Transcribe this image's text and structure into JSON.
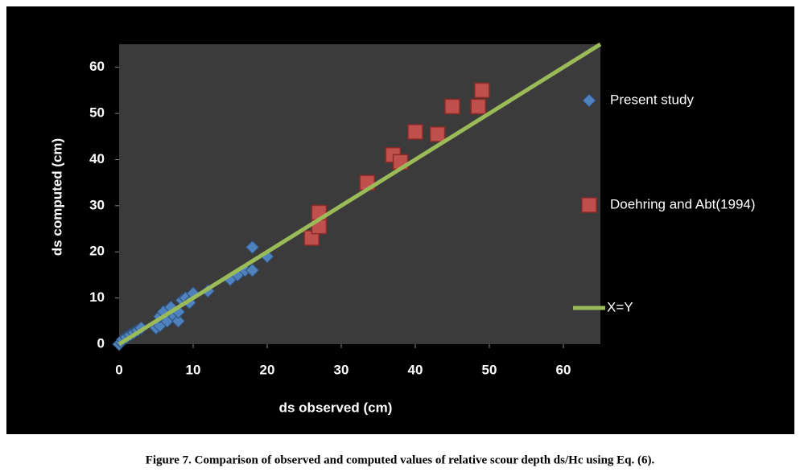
{
  "chart_data": {
    "type": "scatter",
    "xlabel": "ds observed (cm)",
    "ylabel": "ds computed (cm)",
    "caption": "Figure 7. Comparison of observed and computed values of relative scour depth ds/Hc using Eq. (6).",
    "xlim": [
      0,
      65
    ],
    "ylim": [
      0,
      65
    ],
    "xticks": [
      0,
      10,
      20,
      30,
      40,
      50,
      60
    ],
    "yticks": [
      0,
      10,
      20,
      30,
      40,
      50,
      60
    ],
    "series": [
      {
        "name": "Present study",
        "color": "#4f81bd",
        "marker": "diamond",
        "x": [
          0,
          0.3,
          0.5,
          1,
          1.5,
          2,
          2.5,
          3,
          5,
          5.5,
          5.5,
          6,
          6.5,
          7,
          7.5,
          8,
          8,
          8.5,
          9,
          9.5,
          10,
          12,
          15,
          16,
          17,
          18,
          18,
          20
        ],
        "values": [
          0,
          0.5,
          1,
          1.5,
          2,
          2.5,
          3,
          3.5,
          3.5,
          4,
          6,
          7,
          5,
          8,
          6,
          5,
          7,
          9.5,
          10,
          9,
          11,
          11.5,
          14,
          15,
          16,
          16,
          21,
          19
        ]
      },
      {
        "name": "Doehring and Abt(1994)",
        "color": "#c0504d",
        "marker": "square",
        "x": [
          26,
          27,
          27,
          33.5,
          37,
          38,
          40,
          43,
          45,
          48.5,
          49
        ],
        "values": [
          23,
          25.5,
          28.5,
          35,
          41,
          39.5,
          46,
          45.5,
          51.5,
          51.5,
          55
        ]
      },
      {
        "name": "X=Y",
        "color": "#9bbb59",
        "marker": "line",
        "x": [
          0,
          65
        ],
        "values": [
          0,
          65
        ]
      }
    ]
  }
}
